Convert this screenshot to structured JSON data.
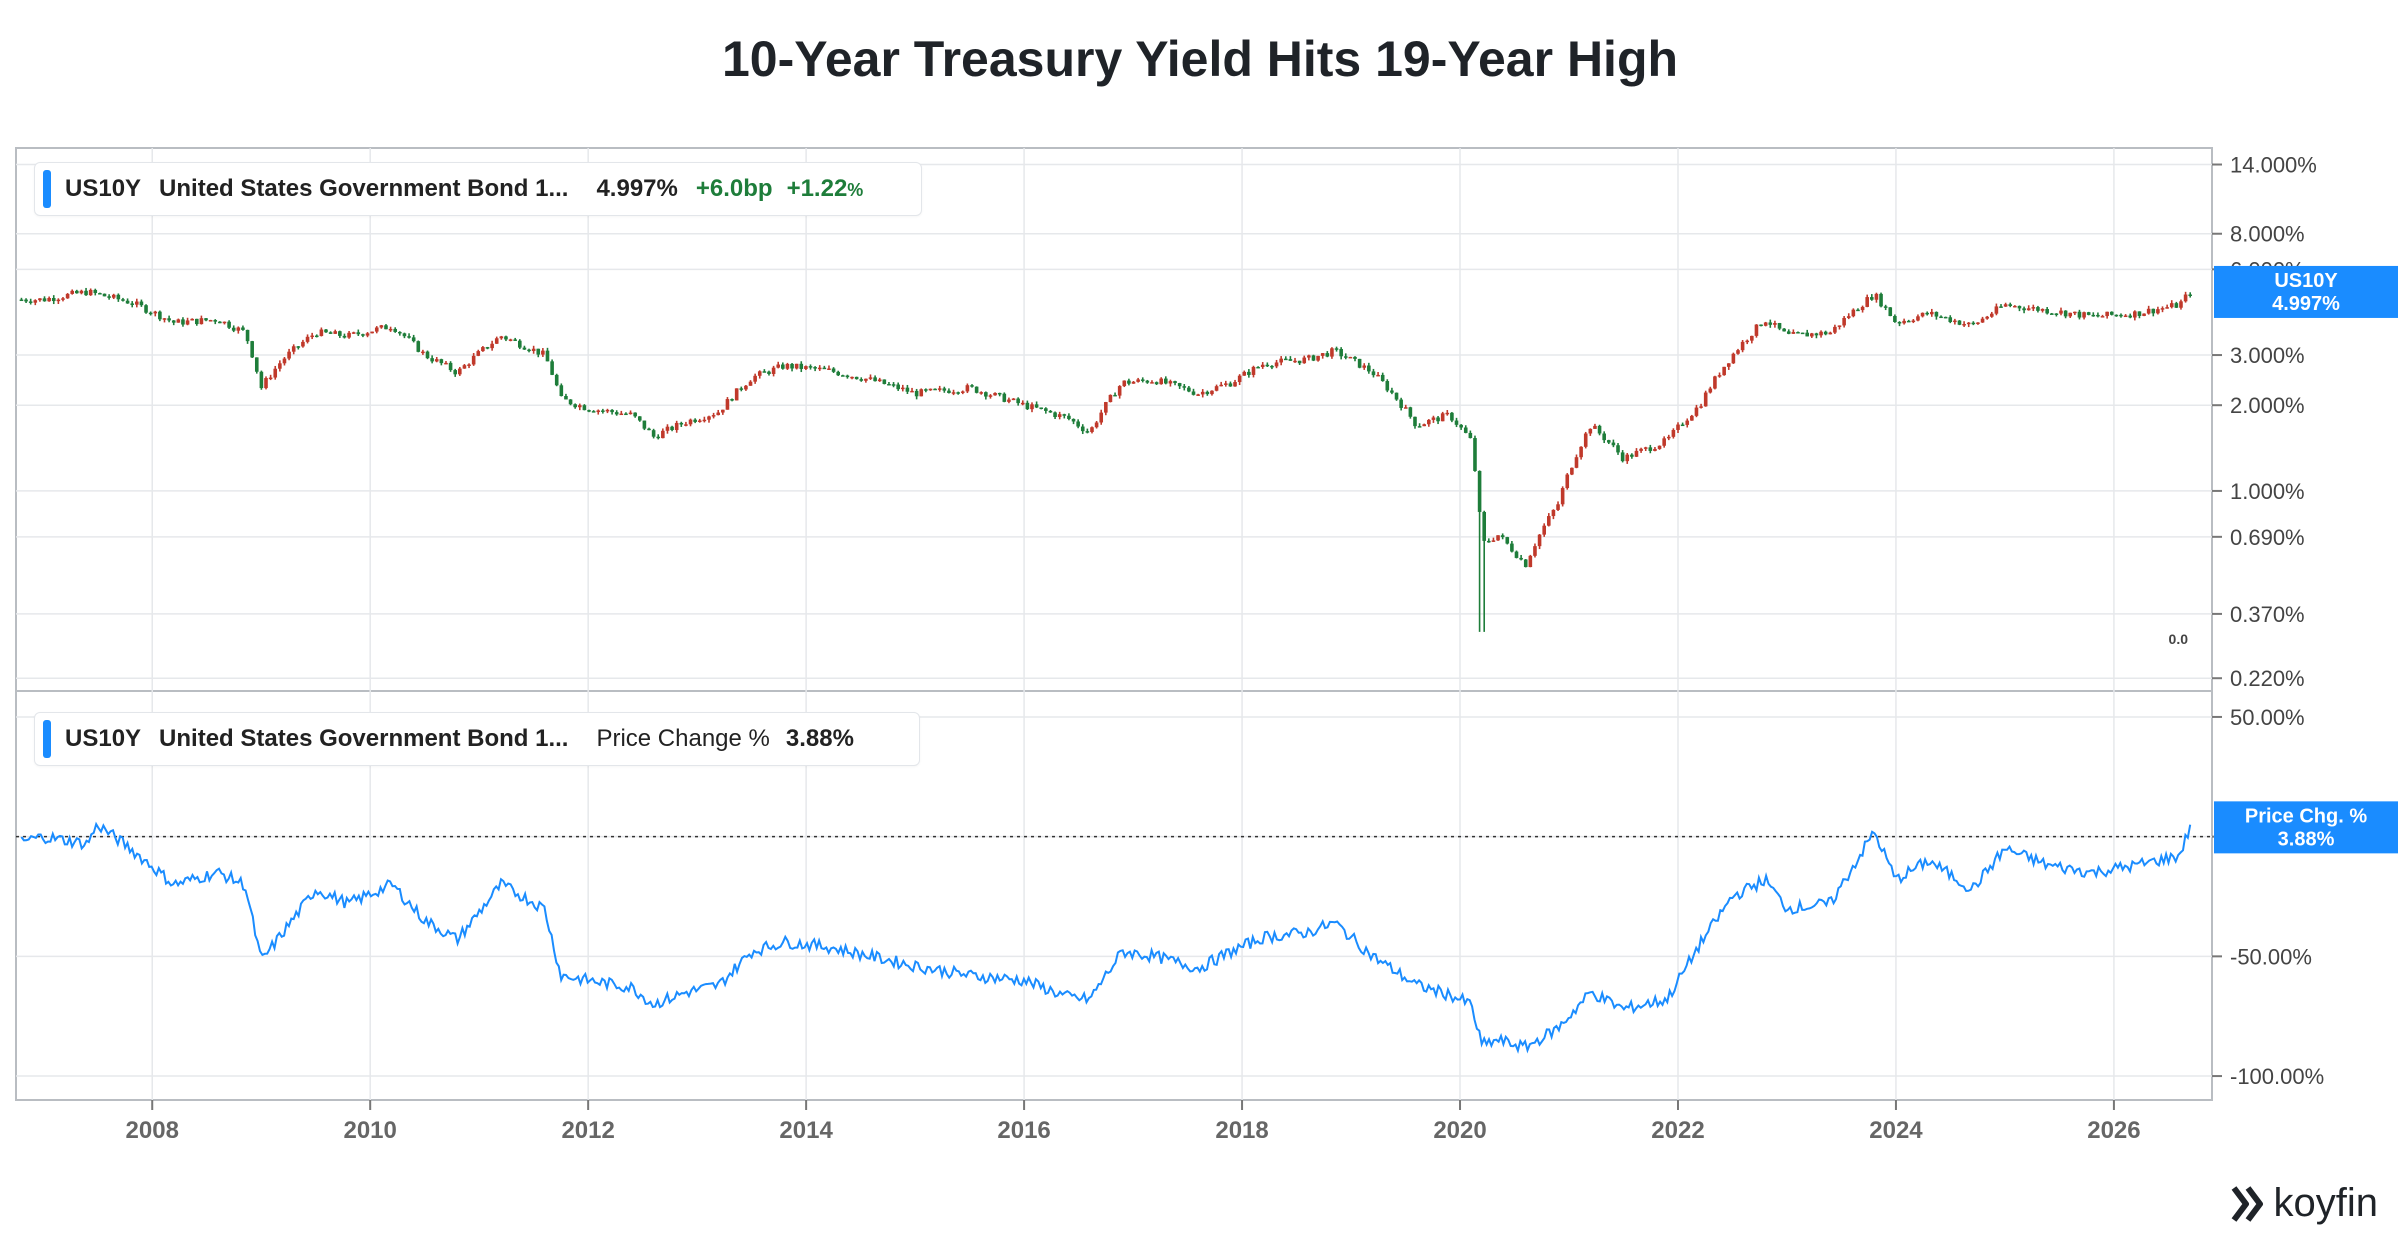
{
  "title": "10-Year Treasury Yield Hits 19-Year High",
  "brand": "koyfin",
  "colors": {
    "up": "#1e7d3a",
    "down": "#c0392b",
    "line": "#1a8cff",
    "badge": "#1a8cff",
    "grid": "#e6e8eb"
  },
  "legend_top": {
    "symbol": "US10Y",
    "name": "United States Government Bond 1...",
    "value": "4.997%",
    "change_bp": "+6.0bp",
    "change_pct": "+1.22",
    "pct_sign": "%"
  },
  "legend_bottom": {
    "symbol": "US10Y",
    "name": "United States Government Bond 1...",
    "metric": "Price Change %",
    "value": "3.88%"
  },
  "badges": {
    "top_symbol": "US10Y",
    "top_value": "4.997%",
    "bottom_label": "Price Chg. %",
    "bottom_value": "3.88%"
  },
  "chart_data": [
    {
      "type": "candlestick",
      "series": [
        {
          "name": "US10Y"
        }
      ],
      "yscale": "log",
      "y_ticks": [
        "14.000%",
        "8.000%",
        "6.000%",
        "3.000%",
        "2.000%",
        "1.000%",
        "0.690%",
        "0.370%",
        "0.220%"
      ],
      "y_tick_values": [
        14.0,
        8.0,
        6.0,
        3.0,
        2.0,
        1.0,
        0.69,
        0.37,
        0.22
      ],
      "annotation": "0.0",
      "last_value": 4.997,
      "x": [
        2006.8,
        2007.0,
        2007.4,
        2007.8,
        2008.2,
        2008.6,
        2008.85,
        2009.0,
        2009.2,
        2009.5,
        2009.8,
        2010.2,
        2010.5,
        2010.8,
        2011.2,
        2011.6,
        2011.75,
        2012.0,
        2012.4,
        2012.6,
        2012.9,
        2013.2,
        2013.5,
        2013.8,
        2014.2,
        2014.6,
        2015.0,
        2015.5,
        2016.0,
        2016.4,
        2016.6,
        2016.9,
        2017.2,
        2017.6,
        2017.9,
        2018.2,
        2018.6,
        2018.85,
        2019.2,
        2019.6,
        2019.9,
        2020.1,
        2020.2,
        2020.35,
        2020.6,
        2020.9,
        2021.2,
        2021.5,
        2021.9,
        2022.2,
        2022.5,
        2022.8,
        2023.0,
        2023.4,
        2023.8,
        2024.0,
        2024.3,
        2024.7,
        2025.0,
        2025.4,
        2025.8,
        2026.2,
        2026.6,
        2026.7
      ],
      "values": [
        4.7,
        4.7,
        5.0,
        4.6,
        3.9,
        4.0,
        3.6,
        2.3,
        2.9,
        3.6,
        3.5,
        3.8,
        3.0,
        2.6,
        3.5,
        3.0,
        2.1,
        1.95,
        1.85,
        1.55,
        1.75,
        1.9,
        2.5,
        2.75,
        2.65,
        2.45,
        2.2,
        2.3,
        2.0,
        1.8,
        1.6,
        2.4,
        2.45,
        2.2,
        2.4,
        2.8,
        2.9,
        3.1,
        2.6,
        1.7,
        1.85,
        1.5,
        0.65,
        0.7,
        0.55,
        0.9,
        1.7,
        1.3,
        1.5,
        2.0,
        3.0,
        4.0,
        3.5,
        3.6,
        4.9,
        3.9,
        4.2,
        3.8,
        4.5,
        4.3,
        4.1,
        4.2,
        4.5,
        5.0
      ]
    },
    {
      "type": "line",
      "series": [
        {
          "name": "Price Change %"
        }
      ],
      "y_ticks": [
        "50.00%",
        "0.00%",
        "-50.00%",
        "-100.00%"
      ],
      "y_tick_values": [
        50,
        0,
        -50,
        -100
      ],
      "reference_line": 0,
      "last_value": 3.88,
      "x": [
        2006.8,
        2007.0,
        2007.4,
        2007.5,
        2007.8,
        2008.2,
        2008.6,
        2008.85,
        2009.0,
        2009.2,
        2009.5,
        2009.8,
        2010.2,
        2010.5,
        2010.8,
        2011.2,
        2011.6,
        2011.75,
        2012.0,
        2012.4,
        2012.6,
        2012.9,
        2013.2,
        2013.5,
        2013.8,
        2014.2,
        2014.6,
        2015.0,
        2015.5,
        2016.0,
        2016.4,
        2016.6,
        2016.9,
        2017.2,
        2017.6,
        2017.9,
        2018.2,
        2018.6,
        2018.85,
        2019.2,
        2019.6,
        2019.9,
        2020.1,
        2020.2,
        2020.35,
        2020.6,
        2020.9,
        2021.2,
        2021.5,
        2021.9,
        2022.2,
        2022.5,
        2022.8,
        2023.0,
        2023.4,
        2023.8,
        2024.0,
        2024.3,
        2024.7,
        2025.0,
        2025.4,
        2025.8,
        2026.2,
        2026.6,
        2026.7
      ],
      "values": [
        -2,
        0,
        -3,
        5,
        -5,
        -20,
        -15,
        -20,
        -52,
        -40,
        -22,
        -28,
        -20,
        -35,
        -43,
        -20,
        -30,
        -58,
        -60,
        -63,
        -70,
        -65,
        -62,
        -48,
        -44,
        -46,
        -50,
        -54,
        -58,
        -60,
        -67,
        -68,
        -48,
        -50,
        -55,
        -48,
        -42,
        -40,
        -36,
        -50,
        -62,
        -66,
        -70,
        -87,
        -85,
        -88,
        -80,
        -65,
        -72,
        -68,
        -45,
        -25,
        -18,
        -30,
        -28,
        2,
        -18,
        -10,
        -22,
        -5,
        -12,
        -15,
        -12,
        -8,
        4
      ]
    }
  ],
  "x_axis": {
    "ticks": [
      "2008",
      "2010",
      "2012",
      "2014",
      "2016",
      "2018",
      "2020",
      "2022",
      "2024",
      "2026"
    ],
    "range": [
      2006.75,
      2026.9
    ]
  }
}
